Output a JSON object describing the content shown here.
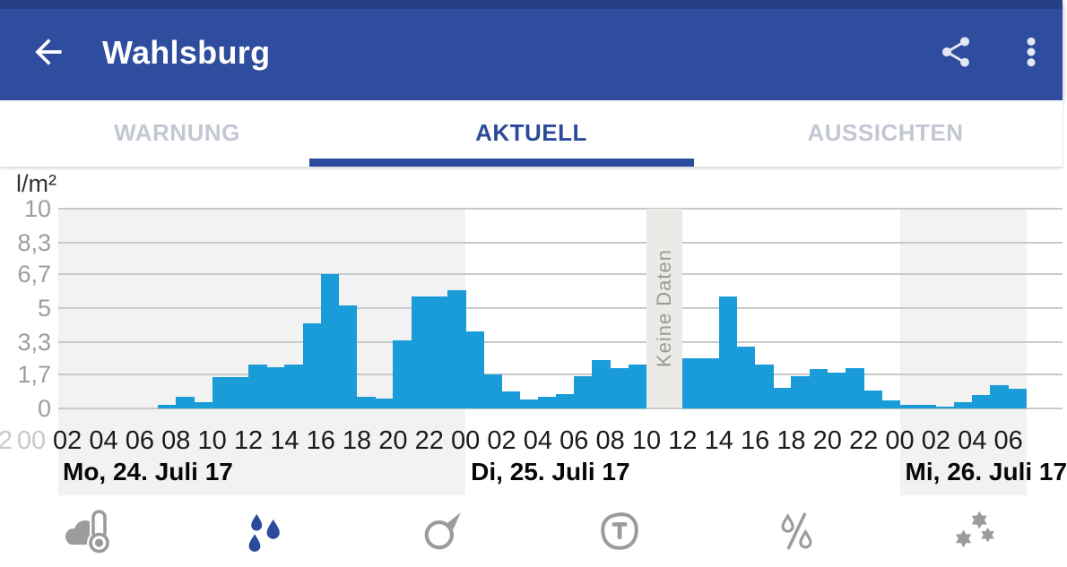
{
  "app_bar": {
    "title": "Wahlsburg",
    "bg_color": "#2F4D9E",
    "status_bar_color": "#273F85",
    "icon_color": "#E4E7F4"
  },
  "tabs": {
    "active_color": "#2B4A9B",
    "inactive_color": "#C3C7D2",
    "items": [
      {
        "label": "WARNUNG",
        "active": false
      },
      {
        "label": "AKTUELL",
        "active": true
      },
      {
        "label": "AUSSICHTEN",
        "active": false
      }
    ]
  },
  "chart_data": {
    "type": "bar",
    "title": "",
    "xlabel": "",
    "ylabel": "l/m²",
    "unit": "l/m²",
    "ylim": [
      0,
      10
    ],
    "grid": true,
    "bar_color": "#199CD8",
    "shaded_day_bg": "#F2F2F2",
    "ytick_labels": [
      "10",
      "8,3",
      "6,7",
      "5",
      "3,3",
      "1,7",
      "0"
    ],
    "ytick_values": [
      10,
      8.3,
      6.7,
      5,
      3.3,
      1.7,
      0
    ],
    "hour_label_interval": 2,
    "faded_left_labels": [
      {
        "text": "2",
        "x": 6
      },
      {
        "text": "00",
        "x": 35
      }
    ],
    "days": [
      {
        "label": "Mo, 24. Juli 17",
        "from_t": 0,
        "to_t": 24,
        "shaded": true
      },
      {
        "label": "Di, 25. Juli 17",
        "from_t": 24,
        "to_t": 48,
        "shaded": false
      },
      {
        "label": "Mi, 26. Juli 17",
        "from_t": 48,
        "to_t": 55,
        "shaded": true
      }
    ],
    "no_data": {
      "label": "Keine Daten",
      "from_t": 34,
      "to_t": 36
    },
    "values_hourly_from_mo_0000": [
      0,
      0,
      0,
      0,
      0,
      0,
      0,
      0.2,
      0.6,
      0.3,
      1.55,
      1.55,
      2.2,
      2.05,
      2.2,
      4.25,
      6.7,
      5.15,
      0.6,
      0.5,
      3.4,
      5.6,
      5.6,
      5.9,
      3.85,
      1.7,
      0.85,
      0.45,
      0.6,
      0.7,
      1.6,
      2.4,
      2,
      2.2,
      null,
      null,
      2.5,
      2.5,
      5.6,
      3.1,
      2.2,
      1.05,
      1.6,
      1.95,
      1.8,
      2,
      0.9,
      0.4,
      0.2,
      0.2,
      0.1,
      0.3,
      0.65,
      1.15,
      1
    ]
  },
  "bottom_nav": {
    "active_color": "#2B4A9B",
    "inactive_color": "#9B9B9B",
    "items": [
      {
        "icon": "cloud-thermometer-icon",
        "active": false
      },
      {
        "icon": "raindrops-icon",
        "active": true
      },
      {
        "icon": "wind-direction-icon",
        "active": false
      },
      {
        "icon": "temperature-icon",
        "active": false
      },
      {
        "icon": "humidity-icon",
        "active": false
      },
      {
        "icon": "snow-icon",
        "active": false
      }
    ]
  }
}
